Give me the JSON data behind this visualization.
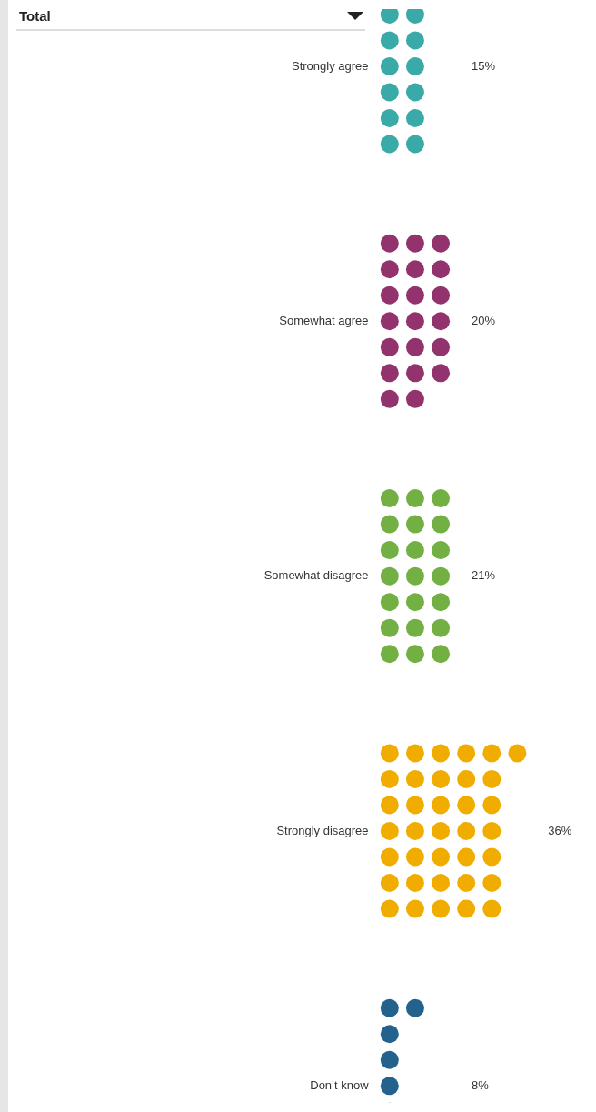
{
  "chart_data": {
    "type": "other",
    "title": "Total",
    "categories": [
      "Strongly agree",
      "Somewhat agree",
      "Somewhat disagree",
      "Strongly disagree",
      "Don’t know"
    ],
    "values": [
      15,
      20,
      21,
      36,
      8
    ],
    "colors": [
      "#3aaaa8",
      "#93336e",
      "#72b043",
      "#f0ad00",
      "#23628c"
    ],
    "value_labels": [
      "15%",
      "20%",
      "21%",
      "36%",
      "8%"
    ]
  }
}
